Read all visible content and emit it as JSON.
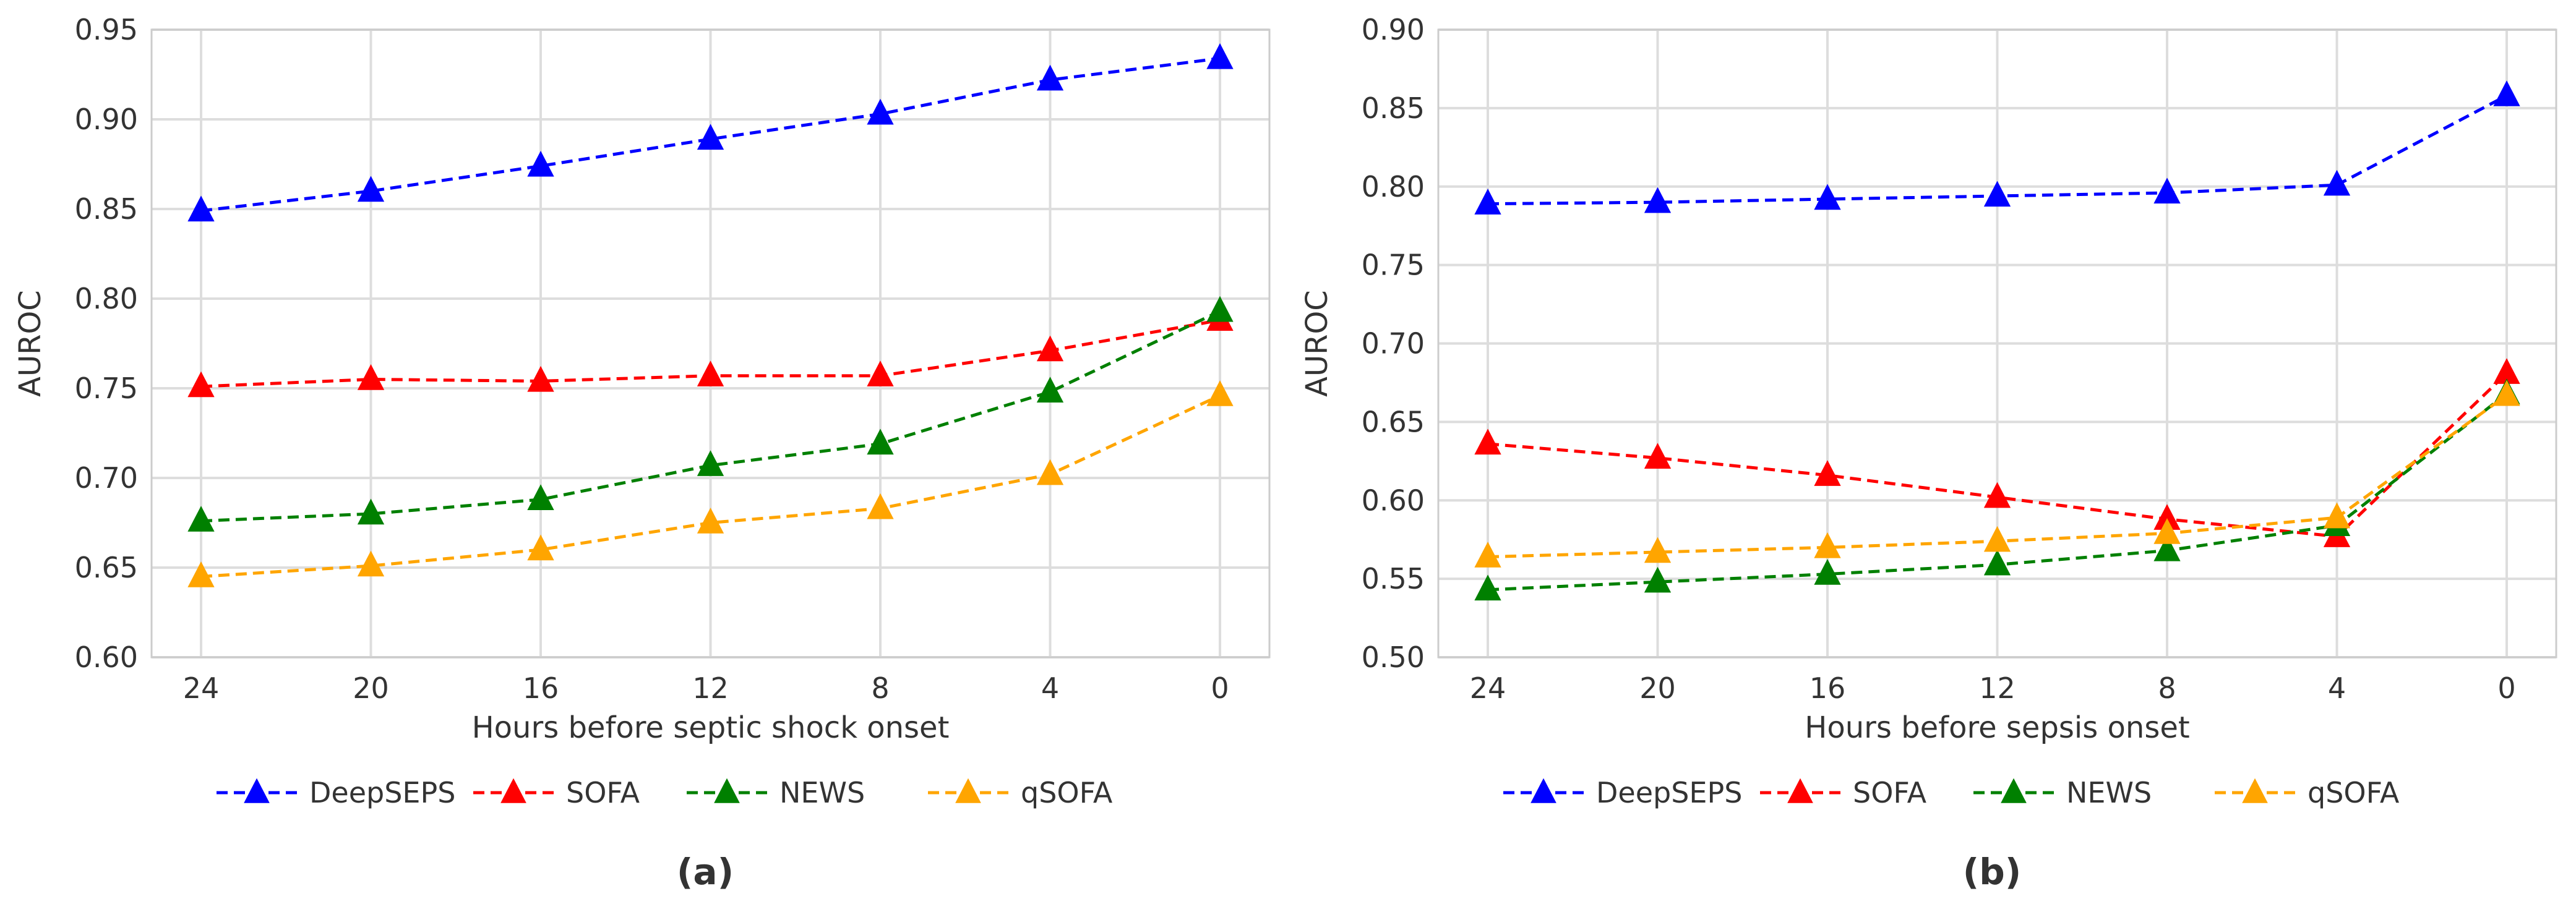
{
  "chart_data": [
    {
      "type": "line",
      "panel_label": "(a)",
      "xlabel": "Hours before septic shock onset",
      "ylabel": "AUROC",
      "categories": [
        "24",
        "20",
        "16",
        "12",
        "8",
        "4",
        "0"
      ],
      "ylim": [
        0.6,
        0.95
      ],
      "yticks": [
        0.6,
        0.65,
        0.7,
        0.75,
        0.8,
        0.85,
        0.9,
        0.95
      ],
      "ytick_labels": [
        "0.60",
        "0.65",
        "0.70",
        "0.75",
        "0.80",
        "0.85",
        "0.90",
        "0.95"
      ],
      "grid": true,
      "legend_position": "bottom",
      "series": [
        {
          "name": "DeepSEPS",
          "color": "#0000ff",
          "marker": "triangle",
          "linestyle": "dashed",
          "values": [
            0.849,
            0.86,
            0.874,
            0.889,
            0.903,
            0.922,
            0.934
          ]
        },
        {
          "name": "SOFA",
          "color": "#ff0000",
          "marker": "triangle",
          "linestyle": "dashed",
          "values": [
            0.751,
            0.755,
            0.754,
            0.757,
            0.757,
            0.771,
            0.788
          ]
        },
        {
          "name": "NEWS",
          "color": "#008000",
          "marker": "triangle",
          "linestyle": "dashed",
          "values": [
            0.676,
            0.68,
            0.688,
            0.707,
            0.719,
            0.748,
            0.793
          ]
        },
        {
          "name": "qSOFA",
          "color": "#ffa500",
          "marker": "triangle",
          "linestyle": "dashed",
          "values": [
            0.645,
            0.651,
            0.66,
            0.675,
            0.683,
            0.702,
            0.746
          ]
        }
      ]
    },
    {
      "type": "line",
      "panel_label": "(b)",
      "xlabel": "Hours before sepsis onset",
      "ylabel": "AUROC",
      "categories": [
        "24",
        "20",
        "16",
        "12",
        "8",
        "4",
        "0"
      ],
      "ylim": [
        0.5,
        0.9
      ],
      "yticks": [
        0.5,
        0.55,
        0.6,
        0.65,
        0.7,
        0.75,
        0.8,
        0.85,
        0.9
      ],
      "ytick_labels": [
        "0.50",
        "0.55",
        "0.60",
        "0.65",
        "0.70",
        "0.75",
        "0.80",
        "0.85",
        "0.90"
      ],
      "grid": true,
      "legend_position": "bottom",
      "series": [
        {
          "name": "DeepSEPS",
          "color": "#0000ff",
          "marker": "triangle",
          "linestyle": "dashed",
          "values": [
            0.789,
            0.79,
            0.792,
            0.794,
            0.796,
            0.801,
            0.858
          ]
        },
        {
          "name": "SOFA",
          "color": "#ff0000",
          "marker": "triangle",
          "linestyle": "dashed",
          "values": [
            0.636,
            0.627,
            0.616,
            0.602,
            0.588,
            0.577,
            0.681
          ]
        },
        {
          "name": "NEWS",
          "color": "#008000",
          "marker": "triangle",
          "linestyle": "dashed",
          "values": [
            0.543,
            0.548,
            0.553,
            0.559,
            0.568,
            0.584,
            0.668
          ]
        },
        {
          "name": "qSOFA",
          "color": "#ffa500",
          "marker": "triangle",
          "linestyle": "dashed",
          "values": [
            0.564,
            0.567,
            0.57,
            0.574,
            0.579,
            0.589,
            0.667
          ]
        }
      ]
    }
  ]
}
